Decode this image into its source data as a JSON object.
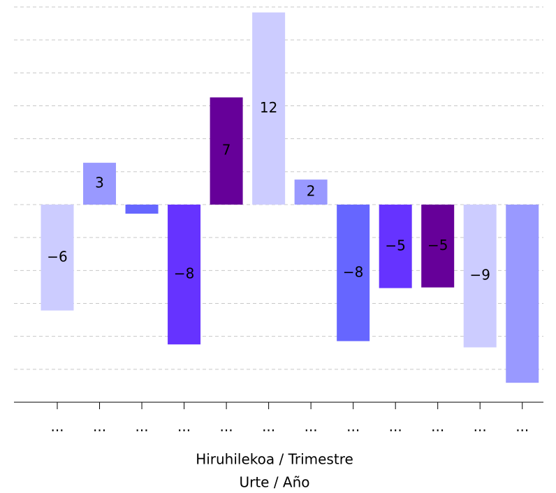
{
  "chart_data": {
    "type": "bar",
    "x_label": "Hiruhilekoa / Trimestre",
    "x_label_2": "Urte / Año",
    "categories": [
      "...",
      "...",
      "...",
      "...",
      "...",
      "...",
      "...",
      "...",
      "...",
      "...",
      "...",
      "..."
    ],
    "values": [
      -6.43,
      2.54,
      -0.55,
      -8.49,
      6.51,
      11.67,
      1.52,
      -8.29,
      -5.07,
      -5.03,
      -8.67,
      -10.82
    ],
    "value_labels": [
      "−6",
      "3",
      null,
      "−8",
      "7",
      "12",
      "2",
      "−8",
      "−5",
      "−5",
      "−9",
      null
    ],
    "colors": [
      "#ccccff",
      "#9999ff",
      "#6666ff",
      "#6633ff",
      "#660099",
      "#ccccff",
      "#9999ff",
      "#6666ff",
      "#6633ff",
      "#660099",
      "#ccccff",
      "#9999ff"
    ],
    "ylim": [
      -12,
      12
    ],
    "yticks": [
      -12,
      -10,
      -8,
      -6,
      -4,
      -2,
      0,
      2,
      4,
      6,
      8,
      10,
      12
    ],
    "grid": true
  }
}
